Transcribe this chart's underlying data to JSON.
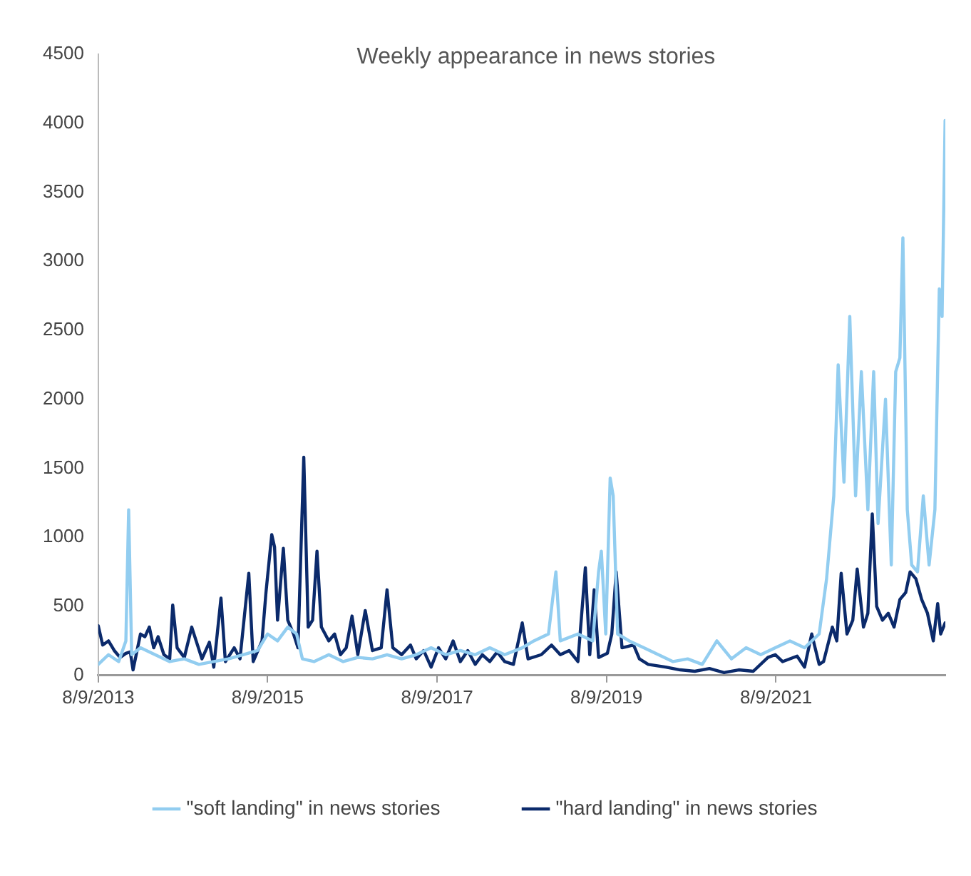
{
  "chart_data": {
    "type": "line",
    "title": "Weekly appearance in news stories",
    "xlim": [
      "2013-08-09",
      "2023-08-09"
    ],
    "xticks": [
      {
        "value": "2013-08-09",
        "label": "8/9/2013"
      },
      {
        "value": "2015-08-09",
        "label": "8/9/2015"
      },
      {
        "value": "2017-08-09",
        "label": "8/9/2017"
      },
      {
        "value": "2019-08-09",
        "label": "8/9/2019"
      },
      {
        "value": "2021-08-09",
        "label": "8/9/2021"
      }
    ],
    "ylim": [
      0,
      4500
    ],
    "yticks": [
      0,
      500,
      1000,
      1500,
      2000,
      2500,
      3000,
      3500,
      4000,
      4500
    ],
    "grid": false,
    "legend": "bottom",
    "marker": "none",
    "line_style": "solid",
    "series": [
      {
        "name": "\"soft landing\" in news stories",
        "color": "#92cdf0",
        "x": [
          "2013-08-09",
          "2013-09-22",
          "2013-11-05",
          "2013-12-06",
          "2013-12-18",
          "2013-12-31",
          "2014-02-07",
          "2014-04-11",
          "2014-06-13",
          "2014-08-15",
          "2014-10-17",
          "2014-12-20",
          "2015-02-21",
          "2015-04-25",
          "2015-06-27",
          "2015-08-09",
          "2015-09-21",
          "2015-11-04",
          "2015-12-12",
          "2016-01-06",
          "2016-02-25",
          "2016-04-29",
          "2016-06-30",
          "2016-09-01",
          "2016-11-03",
          "2017-01-05",
          "2017-03-09",
          "2017-05-11",
          "2017-07-14",
          "2017-09-15",
          "2017-11-17",
          "2018-01-20",
          "2018-03-24",
          "2018-05-27",
          "2018-08-11",
          "2018-09-30",
          "2018-12-02",
          "2019-01-03",
          "2019-01-22",
          "2019-04-08",
          "2019-06-11",
          "2019-07-06",
          "2019-07-18",
          "2019-08-06",
          "2019-08-25",
          "2019-09-07",
          "2019-09-26",
          "2019-11-15",
          "2020-01-17",
          "2020-03-20",
          "2020-05-22",
          "2020-07-24",
          "2020-09-25",
          "2020-11-27",
          "2021-01-29",
          "2021-04-02",
          "2021-06-04",
          "2021-08-06",
          "2021-10-08",
          "2021-12-10",
          "2022-02-11",
          "2022-03-15",
          "2022-04-15",
          "2022-05-04",
          "2022-05-29",
          "2022-06-23",
          "2022-07-18",
          "2022-08-12",
          "2022-09-09",
          "2022-10-04",
          "2022-10-23",
          "2022-11-24",
          "2022-12-19",
          "2023-01-07",
          "2023-01-25",
          "2023-02-07",
          "2023-02-26",
          "2023-03-17",
          "2023-04-11",
          "2023-05-06",
          "2023-05-31",
          "2023-06-25",
          "2023-07-14",
          "2023-07-26",
          "2023-08-08"
        ],
        "values": [
          80,
          150,
          100,
          250,
          1200,
          150,
          200,
          150,
          100,
          120,
          80,
          100,
          120,
          150,
          180,
          300,
          250,
          350,
          300,
          120,
          100,
          150,
          100,
          130,
          120,
          150,
          120,
          150,
          200,
          150,
          180,
          150,
          200,
          150,
          200,
          250,
          300,
          750,
          250,
          300,
          250,
          750,
          900,
          300,
          1430,
          1300,
          300,
          250,
          200,
          150,
          100,
          120,
          80,
          250,
          120,
          200,
          150,
          200,
          250,
          200,
          300,
          700,
          1300,
          2250,
          1400,
          2600,
          1300,
          2200,
          1200,
          2200,
          1100,
          2000,
          800,
          2200,
          2300,
          3170,
          1200,
          800,
          750,
          1300,
          800,
          1200,
          2800,
          2600,
          4020
        ]
      },
      {
        "name": "\"hard landing\" in news stories",
        "color": "#0b2a6b",
        "x": [
          "2013-08-09",
          "2013-08-28",
          "2013-09-22",
          "2013-10-17",
          "2013-11-11",
          "2013-12-06",
          "2013-12-25",
          "2014-01-06",
          "2014-02-07",
          "2014-02-26",
          "2014-03-17",
          "2014-04-05",
          "2014-04-24",
          "2014-05-19",
          "2014-06-13",
          "2014-06-26",
          "2014-07-15",
          "2014-08-15",
          "2014-09-16",
          "2014-10-05",
          "2014-10-30",
          "2014-12-01",
          "2014-12-20",
          "2015-01-20",
          "2015-02-08",
          "2015-03-18",
          "2015-04-12",
          "2015-05-20",
          "2015-06-08",
          "2015-07-16",
          "2015-08-02",
          "2015-08-27",
          "2015-09-08",
          "2015-09-21",
          "2015-10-16",
          "2015-11-04",
          "2015-11-29",
          "2015-12-18",
          "2016-01-12",
          "2016-01-31",
          "2016-02-19",
          "2016-03-09",
          "2016-03-28",
          "2016-04-29",
          "2016-05-24",
          "2016-06-18",
          "2016-07-13",
          "2016-08-07",
          "2016-09-01",
          "2016-10-03",
          "2016-11-03",
          "2016-12-11",
          "2017-01-05",
          "2017-01-30",
          "2017-03-09",
          "2017-04-16",
          "2017-05-11",
          "2017-06-12",
          "2017-07-14",
          "2017-08-15",
          "2017-09-15",
          "2017-10-17",
          "2017-11-17",
          "2017-12-19",
          "2018-01-20",
          "2018-02-20",
          "2018-03-24",
          "2018-04-25",
          "2018-05-27",
          "2018-07-04",
          "2018-08-11",
          "2018-09-05",
          "2018-11-01",
          "2018-12-15",
          "2019-01-22",
          "2019-03-01",
          "2019-04-08",
          "2019-05-10",
          "2019-05-29",
          "2019-06-17",
          "2019-07-06",
          "2019-08-13",
          "2019-09-01",
          "2019-09-20",
          "2019-10-15",
          "2019-12-04",
          "2019-12-29",
          "2020-02-05",
          "2020-04-20",
          "2020-06-22",
          "2020-08-24",
          "2020-10-26",
          "2020-12-28",
          "2021-03-01",
          "2021-05-03",
          "2021-07-05",
          "2021-08-06",
          "2021-09-06",
          "2021-11-08",
          "2021-12-10",
          "2022-01-10",
          "2022-02-11",
          "2022-03-02",
          "2022-04-09",
          "2022-04-28",
          "2022-05-17",
          "2022-06-11",
          "2022-07-06",
          "2022-07-25",
          "2022-08-21",
          "2022-09-09",
          "2022-09-28",
          "2022-10-17",
          "2022-11-11",
          "2022-12-06",
          "2022-12-31",
          "2023-01-25",
          "2023-02-19",
          "2023-03-10",
          "2023-04-04",
          "2023-04-29",
          "2023-05-24",
          "2023-06-18",
          "2023-07-07",
          "2023-07-20",
          "2023-08-08"
        ],
        "values": [
          360,
          220,
          250,
          180,
          130,
          160,
          170,
          40,
          300,
          280,
          350,
          200,
          280,
          150,
          120,
          510,
          200,
          130,
          350,
          250,
          120,
          240,
          60,
          560,
          100,
          200,
          120,
          740,
          100,
          250,
          600,
          1020,
          930,
          400,
          920,
          400,
          300,
          200,
          1580,
          350,
          400,
          900,
          350,
          250,
          300,
          150,
          200,
          430,
          150,
          470,
          180,
          200,
          620,
          200,
          150,
          220,
          120,
          180,
          60,
          200,
          120,
          250,
          100,
          180,
          80,
          150,
          100,
          170,
          100,
          80,
          380,
          120,
          150,
          220,
          150,
          180,
          100,
          780,
          150,
          620,
          130,
          160,
          300,
          750,
          200,
          220,
          120,
          80,
          60,
          40,
          30,
          50,
          20,
          40,
          30,
          130,
          150,
          100,
          140,
          60,
          300,
          80,
          100,
          350,
          250,
          740,
          300,
          400,
          770,
          350,
          450,
          1170,
          500,
          400,
          450,
          350,
          550,
          600,
          750,
          700,
          550,
          450,
          250,
          520,
          300,
          380
        ]
      }
    ]
  }
}
